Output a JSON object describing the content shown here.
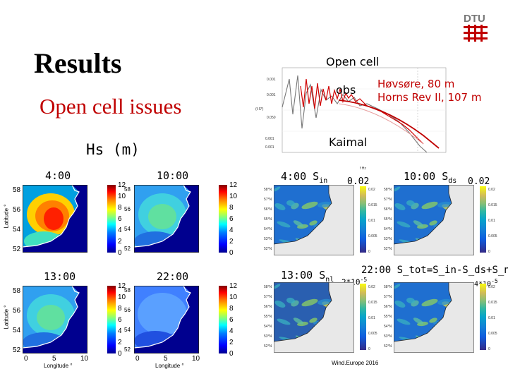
{
  "slide": {
    "title": "Results",
    "subtitle": "Open cell issues",
    "hs_label": "Hs (m)",
    "footer": "Wind.Europe 2016"
  },
  "logo": {
    "text": "DTU",
    "color": "#c00000"
  },
  "spectrum": {
    "title": "Open cell",
    "obs_label": "obs",
    "kaimal_label": "Kaimal",
    "legend": [
      "Høvsøre, 80 m",
      "Horns Rev II, 107 m"
    ],
    "ytick_labels": [
      "0.001",
      "0.001",
      "0.050",
      "0.001",
      "0.001"
    ],
    "y_axis_label": "(f.S*)",
    "x_axis_label": "f Hz",
    "colors": {
      "obs": "#c00000",
      "model_a": "#555555",
      "model_b": "#e08080"
    }
  },
  "hs_maps": [
    {
      "time": "4:00"
    },
    {
      "time": "10:00"
    },
    {
      "time": "13:00"
    },
    {
      "time": "22:00"
    }
  ],
  "hs_colorbar_ticks": [
    "12",
    "10",
    "8",
    "6",
    "4",
    "2",
    "0"
  ],
  "hs_axes": {
    "ylabel": "Latitude °",
    "xlabel": "Longitude °",
    "lat_ticks": [
      "58",
      "56",
      "54",
      "52"
    ],
    "lon_ticks": [
      "0",
      "5",
      "10"
    ]
  },
  "source_maps": [
    {
      "time": "4:00",
      "term": "S",
      "sub": "in",
      "scale": "0.02"
    },
    {
      "time": "10:00",
      "term": "S",
      "sub": "ds",
      "scale": "0.02"
    },
    {
      "time": "13:00",
      "term": "S",
      "sub": "nl",
      "scale_base": "2*10",
      "scale_exp": "-5"
    },
    {
      "time": "22:00",
      "formula": "S_tot=S_in-S_ds+S_nl",
      "scale_base": "4*10",
      "scale_exp": "-5"
    }
  ],
  "source_lat_ticks": [
    "58°N",
    "57°N",
    "56°N",
    "55°N",
    "54°N",
    "53°N",
    "52°N"
  ],
  "source_cbar_ticks": [
    "0.02",
    "0.015",
    "0.01",
    "0.005",
    "0"
  ]
}
